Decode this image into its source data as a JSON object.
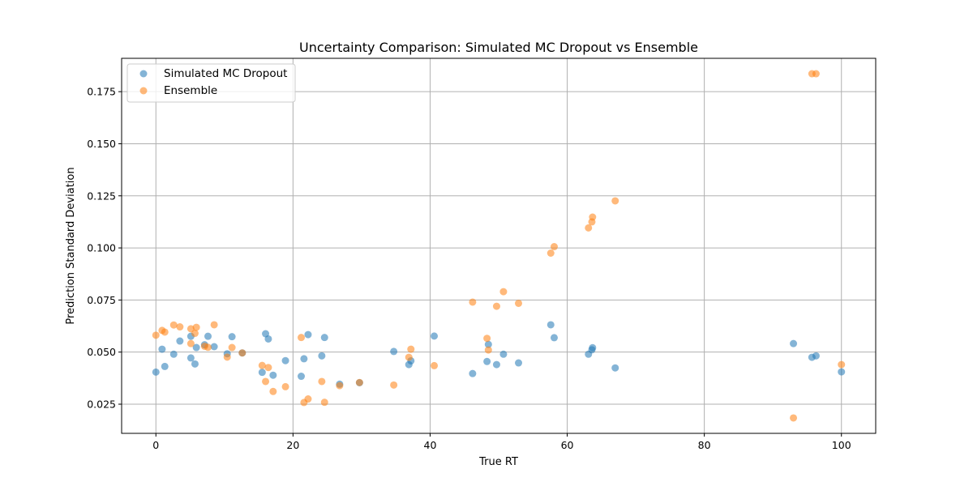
{
  "chart_data": {
    "type": "scatter",
    "title": "Uncertainty Comparison: Simulated MC Dropout vs Ensemble",
    "xlabel": "True RT",
    "ylabel": "Prediction Standard Deviation",
    "xlim": [
      -5,
      105
    ],
    "ylim": [
      0.011,
      0.191
    ],
    "xticks": [
      0,
      20,
      40,
      60,
      80,
      100
    ],
    "yticks": [
      0.025,
      0.05,
      0.075,
      0.1,
      0.125,
      0.15,
      0.175
    ],
    "xtick_labels": [
      "0",
      "20",
      "40",
      "60",
      "80",
      "100"
    ],
    "ytick_labels": [
      "0.025",
      "0.050",
      "0.075",
      "0.100",
      "0.125",
      "0.150",
      "0.175"
    ],
    "grid": true,
    "legend_position": "top-left",
    "series": [
      {
        "name": "Simulated MC Dropout",
        "color": "#1f77b4",
        "points": [
          [
            0.0,
            0.0404
          ],
          [
            0.9,
            0.0514
          ],
          [
            1.3,
            0.0431
          ],
          [
            2.6,
            0.049
          ],
          [
            3.5,
            0.0553
          ],
          [
            5.1,
            0.0576
          ],
          [
            5.1,
            0.0472
          ],
          [
            5.7,
            0.0443
          ],
          [
            5.9,
            0.0522
          ],
          [
            7.1,
            0.0535
          ],
          [
            7.6,
            0.0576
          ],
          [
            8.5,
            0.0526
          ],
          [
            10.4,
            0.0492
          ],
          [
            11.1,
            0.0574
          ],
          [
            12.6,
            0.0496
          ],
          [
            15.5,
            0.0403
          ],
          [
            16.0,
            0.0588
          ],
          [
            16.4,
            0.0563
          ],
          [
            17.1,
            0.0389
          ],
          [
            18.9,
            0.0459
          ],
          [
            21.2,
            0.0384
          ],
          [
            21.6,
            0.0468
          ],
          [
            22.2,
            0.0584
          ],
          [
            24.2,
            0.0482
          ],
          [
            24.6,
            0.057
          ],
          [
            26.8,
            0.0346
          ],
          [
            29.7,
            0.0353
          ],
          [
            34.7,
            0.0503
          ],
          [
            36.9,
            0.044
          ],
          [
            37.2,
            0.0458
          ],
          [
            40.6,
            0.0577
          ],
          [
            46.2,
            0.0397
          ],
          [
            48.3,
            0.0455
          ],
          [
            48.5,
            0.0537
          ],
          [
            49.7,
            0.044
          ],
          [
            50.7,
            0.049
          ],
          [
            52.9,
            0.0448
          ],
          [
            57.6,
            0.0631
          ],
          [
            58.1,
            0.0569
          ],
          [
            63.1,
            0.049
          ],
          [
            63.6,
            0.0511
          ],
          [
            63.7,
            0.0521
          ],
          [
            67.0,
            0.0424
          ],
          [
            93.0,
            0.0541
          ],
          [
            95.7,
            0.0475
          ],
          [
            96.3,
            0.0482
          ],
          [
            100.0,
            0.0405
          ]
        ]
      },
      {
        "name": "Ensemble",
        "color": "#ff7f0e",
        "points": [
          [
            0.0,
            0.0581
          ],
          [
            0.9,
            0.0604
          ],
          [
            1.3,
            0.0596
          ],
          [
            2.6,
            0.063
          ],
          [
            3.5,
            0.0621
          ],
          [
            5.1,
            0.0612
          ],
          [
            5.1,
            0.0541
          ],
          [
            5.7,
            0.059
          ],
          [
            5.9,
            0.0619
          ],
          [
            7.1,
            0.0528
          ],
          [
            7.6,
            0.0523
          ],
          [
            8.5,
            0.0631
          ],
          [
            10.4,
            0.0476
          ],
          [
            11.1,
            0.0522
          ],
          [
            12.6,
            0.0496
          ],
          [
            15.5,
            0.0436
          ],
          [
            16.0,
            0.0359
          ],
          [
            16.4,
            0.0426
          ],
          [
            17.1,
            0.0311
          ],
          [
            18.9,
            0.0334
          ],
          [
            21.2,
            0.057
          ],
          [
            21.6,
            0.0258
          ],
          [
            22.2,
            0.0275
          ],
          [
            24.2,
            0.0359
          ],
          [
            24.6,
            0.0259
          ],
          [
            26.8,
            0.0339
          ],
          [
            29.7,
            0.0354
          ],
          [
            34.7,
            0.0342
          ],
          [
            36.9,
            0.0475
          ],
          [
            37.2,
            0.0514
          ],
          [
            40.6,
            0.0435
          ],
          [
            46.2,
            0.074
          ],
          [
            48.3,
            0.0566
          ],
          [
            48.5,
            0.051
          ],
          [
            49.7,
            0.072
          ],
          [
            50.7,
            0.079
          ],
          [
            52.9,
            0.0734
          ],
          [
            57.6,
            0.0975
          ],
          [
            58.1,
            0.1006
          ],
          [
            63.1,
            0.1096
          ],
          [
            63.6,
            0.1125
          ],
          [
            63.7,
            0.1148
          ],
          [
            67.0,
            0.1226
          ],
          [
            93.0,
            0.0184
          ],
          [
            95.7,
            0.1836
          ],
          [
            96.3,
            0.1836
          ],
          [
            100.0,
            0.044
          ]
        ]
      }
    ]
  }
}
